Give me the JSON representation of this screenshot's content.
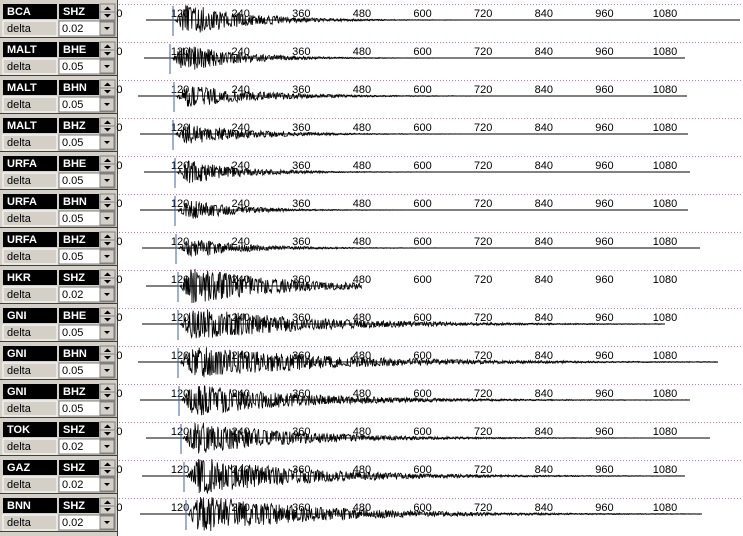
{
  "rows": [
    {
      "station": "BCA",
      "component": "SHZ",
      "delta_label": "delta",
      "delta": "0.02"
    },
    {
      "station": "MALT",
      "component": "BHE",
      "delta_label": "delta",
      "delta": "0.05"
    },
    {
      "station": "MALT",
      "component": "BHN",
      "delta_label": "delta",
      "delta": "0.05"
    },
    {
      "station": "MALT",
      "component": "BHZ",
      "delta_label": "delta",
      "delta": "0.05"
    },
    {
      "station": "URFA",
      "component": "BHE",
      "delta_label": "delta",
      "delta": "0.05"
    },
    {
      "station": "URFA",
      "component": "BHN",
      "delta_label": "delta",
      "delta": "0.05"
    },
    {
      "station": "URFA",
      "component": "BHZ",
      "delta_label": "delta",
      "delta": "0.05"
    },
    {
      "station": "HKR",
      "component": "SHZ",
      "delta_label": "delta",
      "delta": "0.02"
    },
    {
      "station": "GNI",
      "component": "BHE",
      "delta_label": "delta",
      "delta": "0.05"
    },
    {
      "station": "GNI",
      "component": "BHN",
      "delta_label": "delta",
      "delta": "0.05"
    },
    {
      "station": "GNI",
      "component": "BHZ",
      "delta_label": "delta",
      "delta": "0.05"
    },
    {
      "station": "TOK",
      "component": "SHZ",
      "delta_label": "delta",
      "delta": "0.02"
    },
    {
      "station": "GAZ",
      "component": "SHZ",
      "delta_label": "delta",
      "delta": "0.02"
    },
    {
      "station": "BNN",
      "component": "SHZ",
      "delta_label": "delta",
      "delta": "0.02"
    }
  ],
  "time_ticks": [
    0,
    120,
    240,
    360,
    480,
    600,
    720,
    840,
    960,
    1080
  ]
}
